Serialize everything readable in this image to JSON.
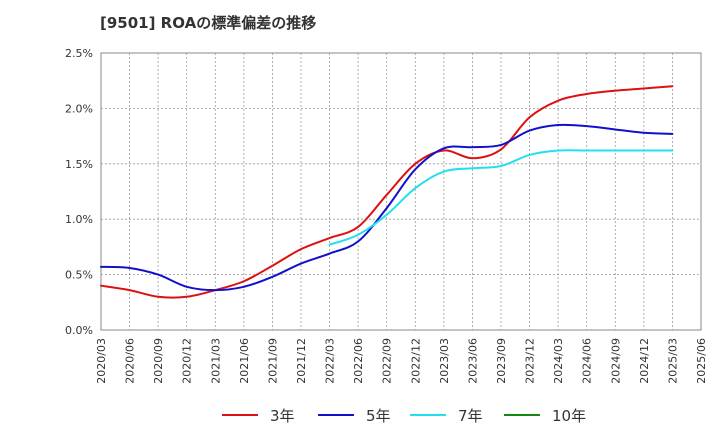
{
  "chart_data": {
    "type": "line",
    "title": "[9501]  ROAの標準偏差の推移",
    "xlabel": "",
    "ylabel": "",
    "ylim": [
      0,
      0.025
    ],
    "yticks": [
      {
        "value": 0,
        "label": "0.0%"
      },
      {
        "value": 0.005,
        "label": "0.5%"
      },
      {
        "value": 0.01,
        "label": "1.0%"
      },
      {
        "value": 0.015,
        "label": "1.5%"
      },
      {
        "value": 0.02,
        "label": "2.0%"
      },
      {
        "value": 0.025,
        "label": "2.5%"
      }
    ],
    "x": [
      "2020/03",
      "2020/06",
      "2020/09",
      "2020/12",
      "2021/03",
      "2021/06",
      "2021/09",
      "2021/12",
      "2022/03",
      "2022/06",
      "2022/09",
      "2022/12",
      "2023/03",
      "2023/06",
      "2023/09",
      "2023/12",
      "2024/03",
      "2024/06",
      "2024/09",
      "2024/12",
      "2025/03",
      "2025/06"
    ],
    "grid": true,
    "legend_position": "bottom",
    "series": [
      {
        "name": "3年",
        "color": "#dd1111",
        "values": [
          0.004,
          0.0036,
          0.003,
          0.003,
          0.0036,
          0.0044,
          0.0058,
          0.0073,
          0.0083,
          0.0093,
          0.0122,
          0.015,
          0.0162,
          0.0155,
          0.0163,
          0.0192,
          0.0207,
          0.0213,
          0.0216,
          0.0218,
          0.022,
          null
        ]
      },
      {
        "name": "5年",
        "color": "#1111cc",
        "values": [
          0.0057,
          0.0056,
          0.005,
          0.0039,
          0.0036,
          0.0039,
          0.0048,
          0.006,
          0.0069,
          0.008,
          0.011,
          0.0145,
          0.0164,
          0.0165,
          0.0167,
          0.018,
          0.0185,
          0.0184,
          0.0181,
          0.0178,
          0.0177,
          null
        ]
      },
      {
        "name": "7年",
        "color": "#22e0ee",
        "values": [
          null,
          null,
          null,
          null,
          null,
          null,
          null,
          null,
          0.0077,
          0.0086,
          0.0104,
          0.0128,
          0.0143,
          0.0146,
          0.0148,
          0.0158,
          0.0162,
          0.0162,
          0.0162,
          0.0162,
          0.0162,
          null
        ]
      },
      {
        "name": "10年",
        "color": "#118811",
        "values": [
          null,
          null,
          null,
          null,
          null,
          null,
          null,
          null,
          null,
          null,
          null,
          null,
          null,
          null,
          null,
          null,
          null,
          null,
          null,
          null,
          null,
          null
        ]
      }
    ]
  }
}
